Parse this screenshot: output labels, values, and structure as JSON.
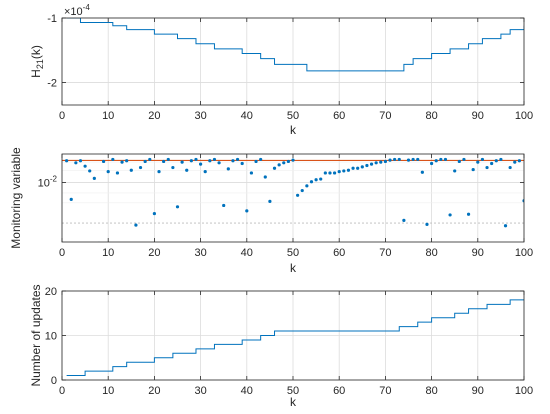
{
  "chart_data": [
    {
      "type": "line",
      "line_style": "stairs",
      "color": "#0072BD",
      "xlabel": "k",
      "ylabel": "H",
      "ylabel_sub": "21",
      "ylabel_suffix": "(k)",
      "exponent_label": "×10",
      "exponent_power": "-4",
      "xlim": [
        0,
        100
      ],
      "ylim": [
        -2.35,
        -1
      ],
      "grid": true,
      "x_ticks": [
        "0",
        "10",
        "20",
        "30",
        "40",
        "50",
        "60",
        "70",
        "80",
        "90",
        "100"
      ],
      "y_ticks": [
        {
          "value": -1,
          "label": "-1"
        },
        {
          "value": -2,
          "label": "-2"
        }
      ],
      "x": [
        1,
        4,
        11,
        14,
        20,
        25,
        29,
        33,
        39,
        43,
        46,
        53,
        74,
        76,
        80,
        84,
        88,
        91,
        95,
        97,
        100
      ],
      "y": [
        -1.0,
        -1.07,
        -1.12,
        -1.18,
        -1.25,
        -1.32,
        -1.4,
        -1.48,
        -1.55,
        -1.63,
        -1.72,
        -1.82,
        -1.72,
        -1.63,
        -1.55,
        -1.48,
        -1.4,
        -1.32,
        -1.25,
        -1.18,
        -1.12
      ]
    },
    {
      "type": "scatter",
      "color": "#0072BD",
      "xlabel": "k",
      "ylabel": "Monitoring variable",
      "xlim": [
        0,
        100
      ],
      "ylim": [
        -2.88,
        -1.58
      ],
      "y_scale": "log",
      "grid": true,
      "x_ticks": [
        "0",
        "10",
        "20",
        "30",
        "40",
        "50",
        "60",
        "70",
        "80",
        "90",
        "100"
      ],
      "y_ticks": [
        {
          "value": -2,
          "label": "10",
          "sup": "-2"
        }
      ],
      "threshold": {
        "value": -1.675,
        "color": "#D95319"
      },
      "lower_reference": {
        "value": -2.6,
        "color": "#bbbbbb",
        "style": "dotted"
      },
      "x": [
        1,
        2,
        3,
        4,
        5,
        6,
        7,
        8,
        9,
        10,
        11,
        12,
        13,
        14,
        15,
        16,
        17,
        18,
        19,
        20,
        21,
        22,
        23,
        24,
        25,
        26,
        27,
        28,
        29,
        30,
        31,
        32,
        33,
        34,
        35,
        36,
        37,
        38,
        39,
        40,
        41,
        42,
        43,
        44,
        45,
        46,
        47,
        48,
        49,
        50,
        51,
        52,
        53,
        54,
        55,
        56,
        57,
        58,
        59,
        60,
        61,
        62,
        63,
        64,
        65,
        66,
        67,
        68,
        69,
        70,
        71,
        72,
        73,
        74,
        75,
        76,
        77,
        78,
        79,
        80,
        81,
        82,
        83,
        84,
        85,
        86,
        87,
        88,
        89,
        90,
        91,
        92,
        93,
        94,
        95,
        96,
        97,
        98,
        99,
        100
      ],
      "y": [
        -1.68,
        -2.25,
        -1.71,
        -1.68,
        -1.76,
        -1.83,
        -1.94,
        -2.9,
        -1.69,
        -1.84,
        -1.66,
        -1.86,
        -1.7,
        -1.68,
        -1.82,
        -2.63,
        -1.78,
        -1.69,
        -1.66,
        -2.46,
        -1.84,
        -1.69,
        -1.66,
        -1.78,
        -2.36,
        -1.7,
        -1.82,
        -1.68,
        -1.66,
        -1.73,
        -1.84,
        -1.68,
        -1.66,
        -1.71,
        -2.34,
        -1.8,
        -1.68,
        -1.66,
        -1.72,
        -2.42,
        -1.86,
        -1.69,
        -1.66,
        -1.92,
        -2.28,
        -1.79,
        -1.74,
        -1.71,
        -1.69,
        -1.67,
        -2.19,
        -2.12,
        -2.05,
        -1.99,
        -1.96,
        -1.95,
        -1.86,
        -1.86,
        -1.86,
        -1.84,
        -1.83,
        -1.82,
        -1.79,
        -1.79,
        -1.77,
        -1.75,
        -1.73,
        -1.71,
        -1.7,
        -1.69,
        -1.67,
        -1.66,
        -1.66,
        -2.56,
        -1.67,
        -1.66,
        -1.66,
        -1.85,
        -2.62,
        -1.72,
        -1.68,
        -1.66,
        -1.66,
        -2.48,
        -1.83,
        -1.69,
        -1.66,
        -2.47,
        -1.81,
        -1.7,
        -1.66,
        -1.78,
        -1.72,
        -1.68,
        -1.66,
        -2.64,
        -1.78,
        -1.7,
        -1.68,
        -2.27
      ]
    },
    {
      "type": "line",
      "line_style": "stairs",
      "color": "#0072BD",
      "xlabel": "k",
      "ylabel": "Number of updates",
      "xlim": [
        0,
        100
      ],
      "ylim": [
        0,
        20
      ],
      "grid": true,
      "x_ticks": [
        "0",
        "10",
        "20",
        "30",
        "40",
        "50",
        "60",
        "70",
        "80",
        "90",
        "100"
      ],
      "y_ticks": [
        {
          "value": 0,
          "label": "0"
        },
        {
          "value": 10,
          "label": "10"
        },
        {
          "value": 20,
          "label": "20"
        }
      ],
      "x": [
        1,
        5,
        11,
        14,
        20,
        24,
        29,
        33,
        39,
        43,
        46,
        52,
        73,
        77,
        80,
        85,
        88,
        92,
        95,
        97,
        100
      ],
      "y": [
        1,
        2,
        3,
        4,
        5,
        6,
        7,
        8,
        9,
        10,
        11,
        11,
        12,
        13,
        14,
        15,
        16,
        17,
        17,
        18,
        18
      ]
    }
  ]
}
